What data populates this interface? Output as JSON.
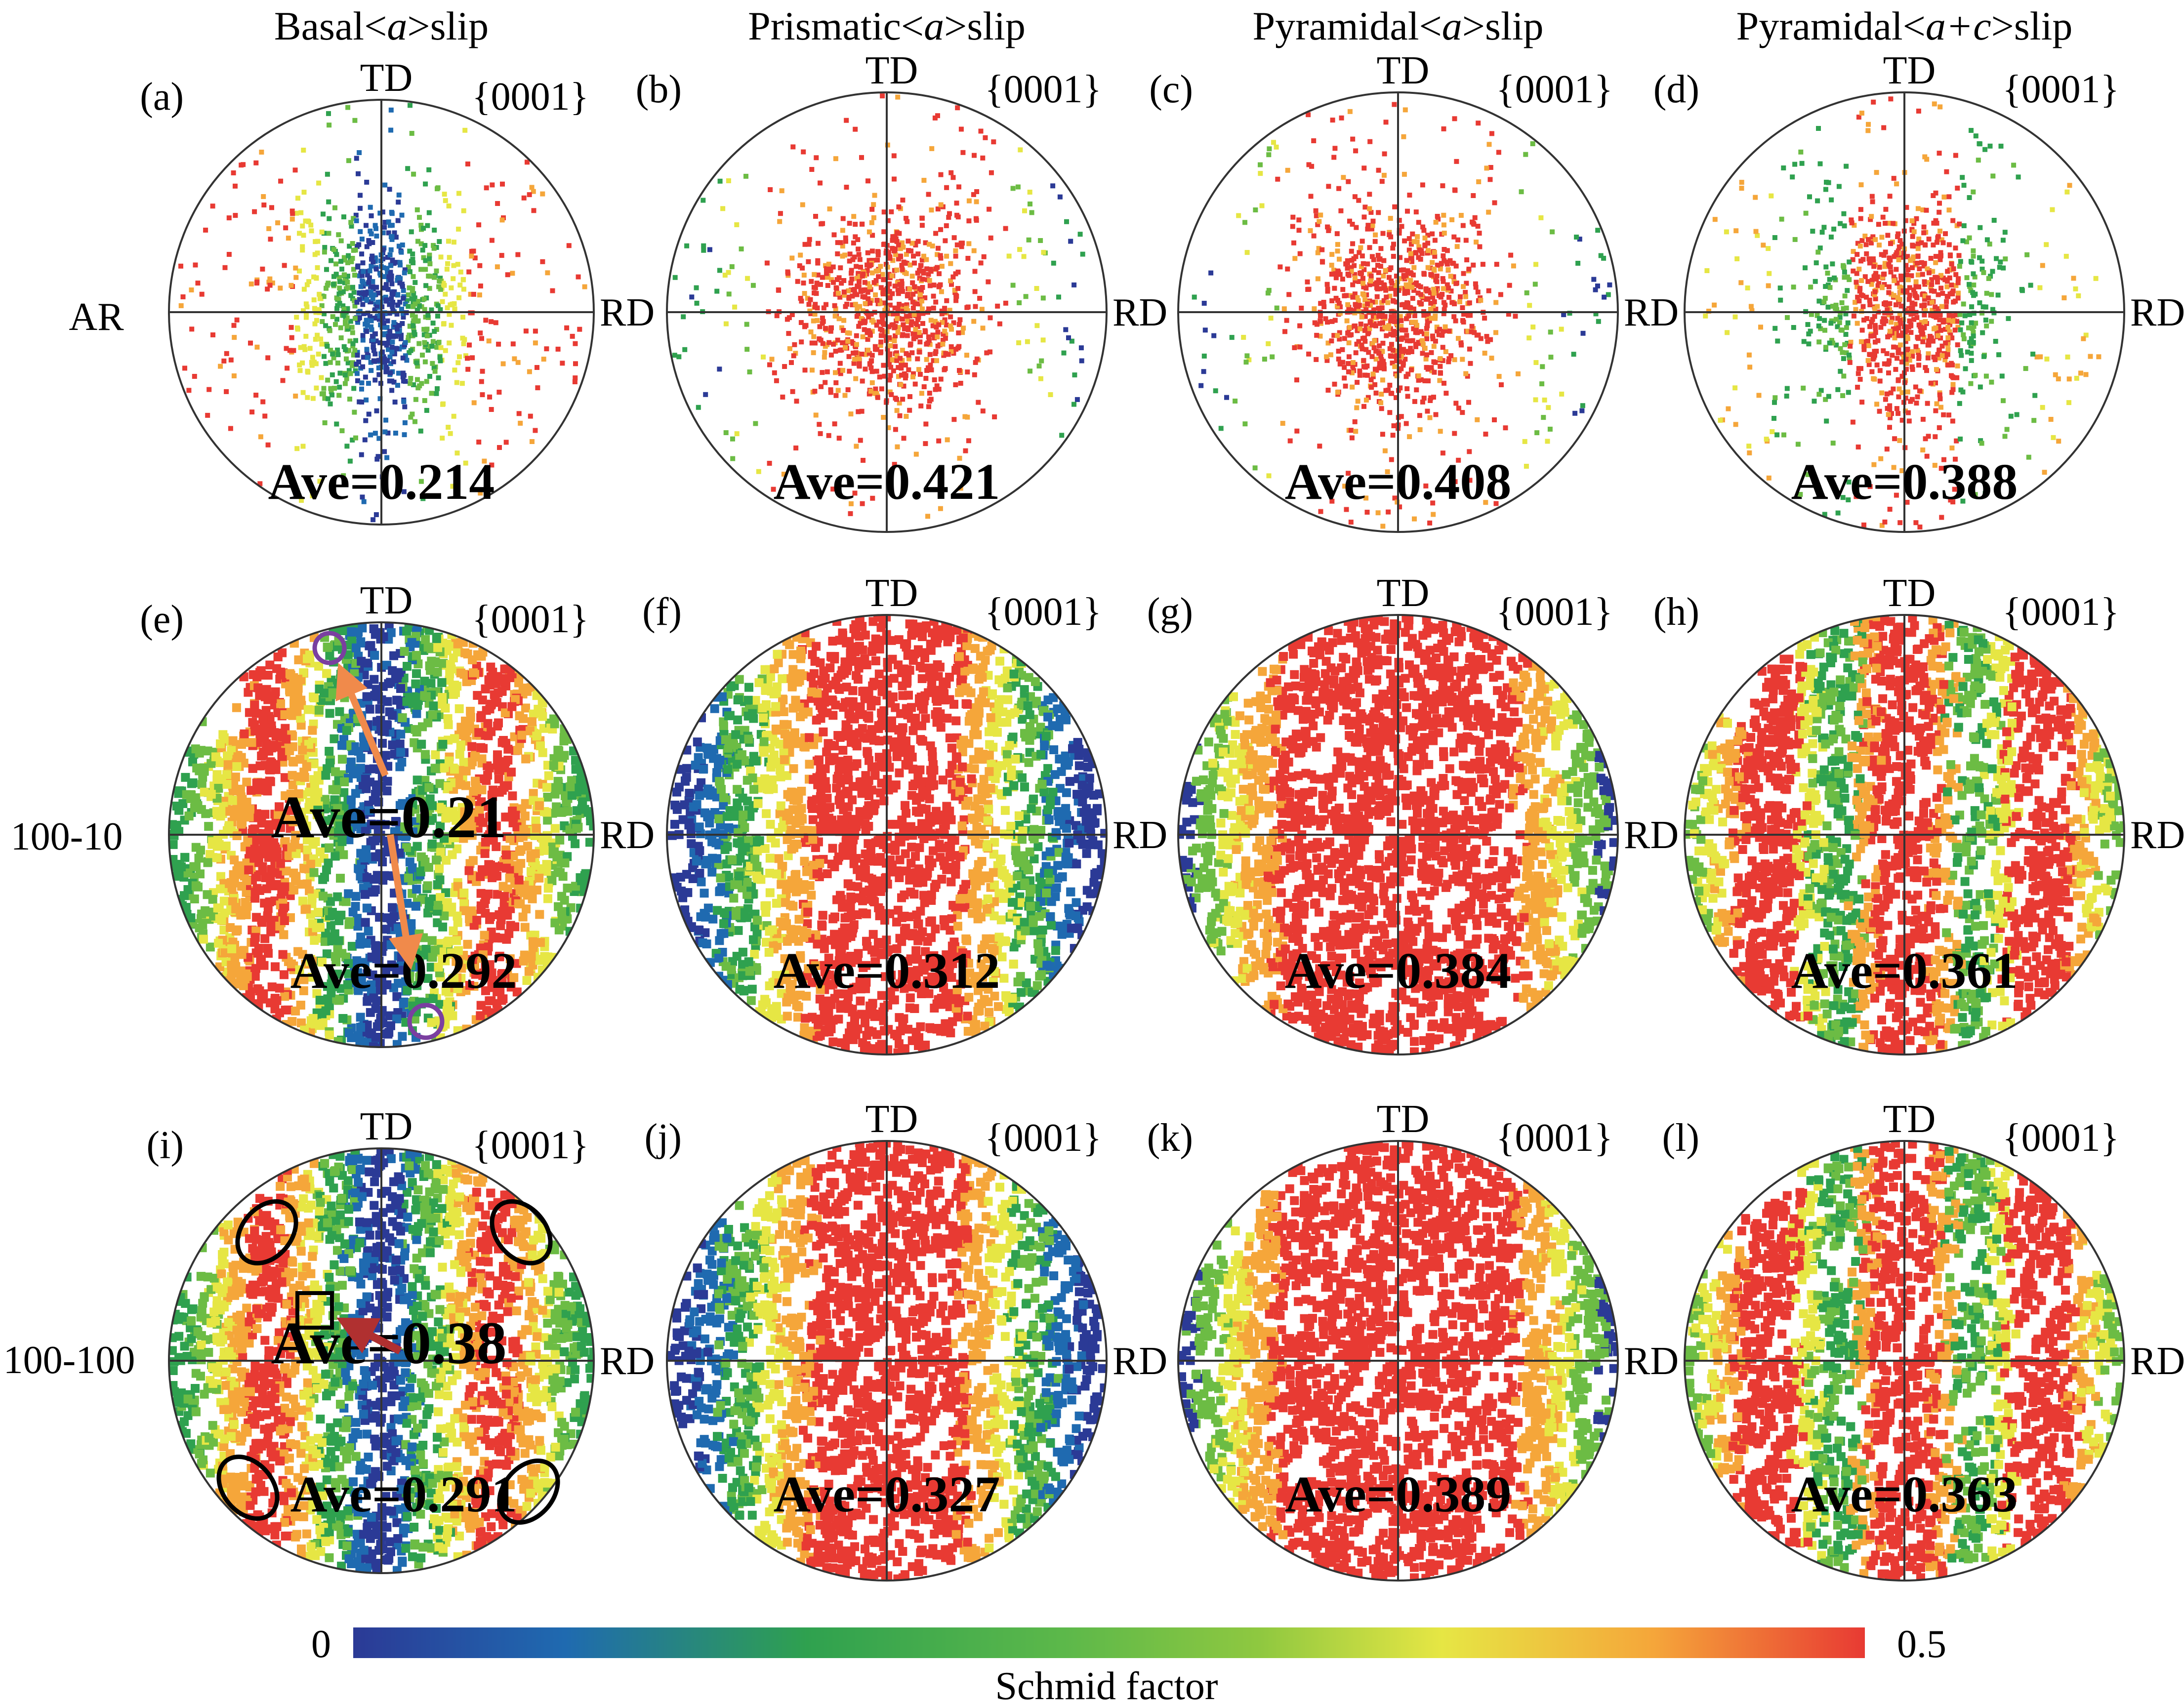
{
  "columns": [
    {
      "pre": "Basal<",
      "italic": "a",
      "post": ">slip"
    },
    {
      "pre": "Prismatic<",
      "italic": "a",
      "post": ">slip"
    },
    {
      "pre": "Pyramidal<",
      "italic": "a",
      "post": ">slip"
    },
    {
      "pre": "Pyramidal<",
      "italic": "a+c",
      "post": ">slip"
    }
  ],
  "rows": [
    "AR",
    "100-10",
    "100-100"
  ],
  "axis_labels": {
    "top": "TD",
    "right": "RD",
    "plane": "{0001}"
  },
  "panels": [
    {
      "label": "(a)",
      "style": "scatter",
      "major": "center",
      "ave": [
        "Ave=0.214"
      ]
    },
    {
      "label": "(b)",
      "style": "scatter",
      "major": "red",
      "ave": [
        "Ave=0.421"
      ]
    },
    {
      "label": "(c)",
      "style": "scatter",
      "major": "red",
      "ave": [
        "Ave=0.408"
      ]
    },
    {
      "label": "(d)",
      "style": "scatter",
      "major": "redgreen",
      "ave": [
        "Ave=0.388"
      ]
    },
    {
      "label": "(e)",
      "style": "basal",
      "ave": [
        "Ave=0.21",
        "Ave=0.292"
      ]
    },
    {
      "label": "(f)",
      "style": "prismatic",
      "ave": [
        "Ave=0.312"
      ]
    },
    {
      "label": "(g)",
      "style": "pyra",
      "ave": [
        "Ave=0.384"
      ]
    },
    {
      "label": "(h)",
      "style": "pyrac",
      "ave": [
        "Ave=0.361"
      ]
    },
    {
      "label": "(i)",
      "style": "basal",
      "ave": [
        "Ave=0.38",
        "Ave=0.291"
      ]
    },
    {
      "label": "(j)",
      "style": "prismatic",
      "ave": [
        "Ave=0.327"
      ]
    },
    {
      "label": "(k)",
      "style": "pyra",
      "ave": [
        "Ave=0.389"
      ]
    },
    {
      "label": "(l)",
      "style": "pyrac",
      "ave": [
        "Ave=0.363"
      ]
    }
  ],
  "colorbar": {
    "min_label": "0",
    "max_label": "0.5",
    "title": "Schmid factor",
    "range": [
      0,
      0.5
    ],
    "stops": [
      "#2b3a96",
      "#1f6ab0",
      "#2fa14f",
      "#5cb84a",
      "#8fc840",
      "#e6e644",
      "#f5a63a",
      "#e83a33"
    ]
  },
  "annotation_colors": {
    "arrow_e": "#f08a4b",
    "circle_e": "#7a3fa0",
    "arrow_i": "#b03030",
    "ellipse_i": "#000000"
  }
}
